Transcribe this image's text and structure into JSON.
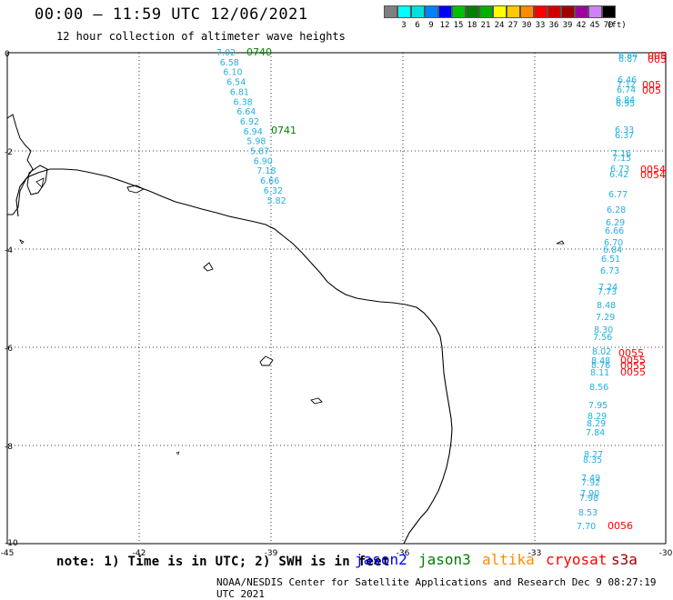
{
  "header": {
    "title": "00:00 – 11:59 UTC 12/06/2021",
    "subtitle": "12 hour collection of altimeter wave heights"
  },
  "legend": {
    "unit": "(ft)",
    "bins": [
      {
        "label": "",
        "color": "#7f7f7f"
      },
      {
        "label": "3",
        "color": "#00ffff"
      },
      {
        "label": "6",
        "color": "#00e0e0"
      },
      {
        "label": "9",
        "color": "#0080ff"
      },
      {
        "label": "12",
        "color": "#0000ff"
      },
      {
        "label": "15",
        "color": "#00c000"
      },
      {
        "label": "18",
        "color": "#008000"
      },
      {
        "label": "21",
        "color": "#00b000"
      },
      {
        "label": "24",
        "color": "#ffff00"
      },
      {
        "label": "27",
        "color": "#ffc800"
      },
      {
        "label": "30",
        "color": "#ff8c00"
      },
      {
        "label": "33",
        "color": "#ff0000"
      },
      {
        "label": "36",
        "color": "#d00000"
      },
      {
        "label": "39",
        "color": "#a00000"
      },
      {
        "label": "42",
        "color": "#a000a0"
      },
      {
        "label": "45",
        "color": "#d080ff"
      },
      {
        "label": "70",
        "color": "#000000"
      }
    ]
  },
  "axes": {
    "lon_ticks": [
      "-45",
      "-42",
      "-39",
      "-36",
      "-33",
      "-30"
    ],
    "lat_ticks": [
      "0",
      "-2",
      "-4",
      "-6",
      "-8",
      "-10"
    ]
  },
  "wave_color": "#22b0e0",
  "track_west": {
    "values": [
      "7.02",
      "6.58",
      "6.10",
      "6.54",
      "6.81",
      "6.38",
      "6.64",
      "6.92",
      "6.94",
      "5.98",
      "5.87",
      "6.90",
      "7.18",
      "6.66",
      "6.32",
      "5.82"
    ],
    "time_labels": [
      {
        "text": "0740",
        "color": "#008000"
      },
      {
        "text": "0741",
        "color": "#008000"
      }
    ]
  },
  "track_east": {
    "values": [
      "6.84",
      "6.87",
      "6.46",
      "7.12",
      "6.74",
      "6.84",
      "6.95",
      "6.33",
      "6.37",
      "7.16",
      "7.15",
      "6.73",
      "6.42",
      "6.77",
      "6.28",
      "6.29",
      "6.66",
      "6.70",
      "6.84",
      "6.51",
      "6.73",
      "7.24",
      "7.73",
      "8.48",
      "7.29",
      "8.30",
      "7.56",
      "8.02",
      "8.48",
      "8.76",
      "8.11",
      "8.56",
      "7.95",
      "8.29",
      "8.29",
      "7.84",
      "8.27",
      "8.35",
      "7.49",
      "7.92",
      "7.90",
      "7.98",
      "8.53",
      "7.70"
    ],
    "time_labels": [
      {
        "text": "005",
        "color": "#ff0000"
      },
      {
        "text": "005",
        "color": "#ff0000"
      },
      {
        "text": "005",
        "color": "#ff0000"
      },
      {
        "text": "005",
        "color": "#ff0000"
      },
      {
        "text": "0054",
        "color": "#ff0000"
      },
      {
        "text": "0054",
        "color": "#ff0000"
      },
      {
        "text": "0055",
        "color": "#ff0000"
      },
      {
        "text": "0055",
        "color": "#ff0000"
      },
      {
        "text": "0055",
        "color": "#ff0000"
      },
      {
        "text": "0055",
        "color": "#ff0000"
      },
      {
        "text": "0056",
        "color": "#ff0000"
      }
    ]
  },
  "footer": {
    "note": "note: 1) Time is in UTC; 2) SWH is in feet",
    "satellites": [
      {
        "name": "jason2",
        "color": "#0000ff"
      },
      {
        "name": "jason3",
        "color": "#008000"
      },
      {
        "name": "altika",
        "color": "#ff8c00"
      },
      {
        "name": "cryosat",
        "color": "#ff0000"
      },
      {
        "name": "s3a",
        "color": "#a00000"
      }
    ],
    "credit": "NOAA/NESDIS Center for Satellite Applications and Research   Dec  9 08:27:19 UTC 2021"
  }
}
